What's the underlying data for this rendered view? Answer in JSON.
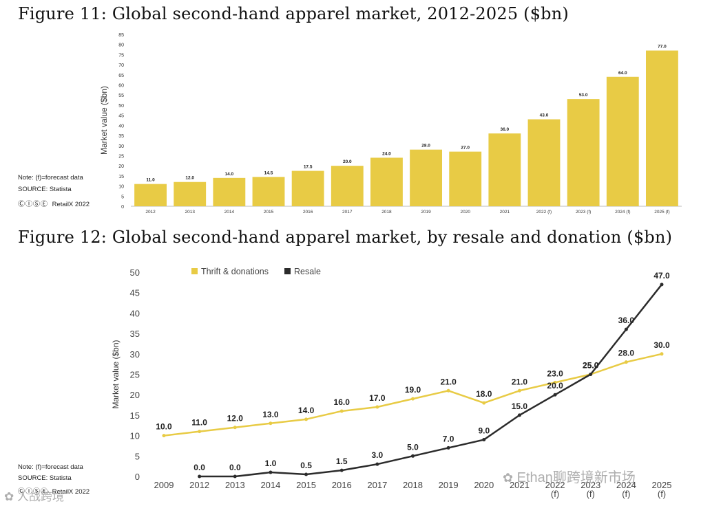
{
  "figure11": {
    "title": "Figure 11: Global second-hand apparel market, 2012-2025 ($bn)",
    "note": "Note: (f)=forecast data",
    "source": "SOURCE: Statista",
    "license": "RetailX 2022",
    "license_icons": "ⒸⒾⓈⒺ"
  },
  "figure12": {
    "title": "Figure 12: Global second-hand apparel market, by resale and donation ($bn)",
    "note": "Note: (f)=forecast data",
    "source": "SOURCE: Statista",
    "license": "RetailX 2022",
    "license_icons": "ⒸⒾⓈⒺ"
  },
  "watermark": {
    "right": "Ethan聊跨境新市场",
    "left": "人战跨境"
  },
  "colors": {
    "bar": "#E8CB45",
    "thrift": "#E8CB45",
    "resale": "#2B2B2B",
    "axis": "#BBBBBB"
  },
  "chart_data": [
    {
      "type": "bar",
      "title": "Figure 11: Global second-hand apparel market, 2012-2025 ($bn)",
      "xlabel": "",
      "ylabel": "Market value ($bn)",
      "ylim": [
        0,
        85
      ],
      "yticks": [
        0,
        5,
        10,
        15,
        20,
        25,
        30,
        35,
        40,
        45,
        50,
        55,
        60,
        65,
        70,
        75,
        80,
        85
      ],
      "categories": [
        "2012",
        "2013",
        "2014",
        "2015",
        "2016",
        "2017",
        "2018",
        "2019",
        "2020",
        "2021",
        "2022 (f)",
        "2023 (f)",
        "2024 (f)",
        "2025 (f)"
      ],
      "values": [
        11.0,
        12.0,
        14.0,
        14.5,
        17.5,
        20.0,
        24.0,
        28.0,
        27.0,
        36.0,
        43.0,
        53.0,
        64.0,
        77.0
      ],
      "labels": [
        "11.0",
        "12.0",
        "14.0",
        "14.5",
        "17.5",
        "20.0",
        "24.0",
        "28.0",
        "27.0",
        "36.0",
        "43.0",
        "53.0",
        "64.0",
        "77.0"
      ],
      "grid": false
    },
    {
      "type": "line",
      "title": "Figure 12: Global second-hand apparel market, by resale and donation ($bn)",
      "xlabel": "",
      "ylabel": "Market value ($bn)",
      "ylim": [
        0,
        50
      ],
      "yticks": [
        0,
        5,
        10,
        15,
        20,
        25,
        30,
        35,
        40,
        45,
        50
      ],
      "categories": [
        [
          "2009"
        ],
        [
          "2012"
        ],
        [
          "2013"
        ],
        [
          "2014"
        ],
        [
          "2015"
        ],
        [
          "2016"
        ],
        [
          "2017"
        ],
        [
          "2018"
        ],
        [
          "2019"
        ],
        [
          "2020"
        ],
        [
          "2021"
        ],
        [
          "2022",
          "(f)"
        ],
        [
          "2023",
          "(f)"
        ],
        [
          "2024",
          "(f)"
        ],
        [
          "2025",
          "(f)"
        ]
      ],
      "legend_position": "top-left",
      "grid": false,
      "series": [
        {
          "name": "Thrift & donations",
          "values": [
            10.0,
            11.0,
            12.0,
            13.0,
            14.0,
            16.0,
            17.0,
            19.0,
            21.0,
            18.0,
            21.0,
            23.0,
            25.0,
            28.0,
            30.0
          ],
          "labels": [
            "10.0",
            "11.0",
            "12.0",
            "13.0",
            "14.0",
            "16.0",
            "17.0",
            "19.0",
            "21.0",
            "18.0",
            "21.0",
            "23.0",
            "25.0",
            "28.0",
            "30.0"
          ]
        },
        {
          "name": "Resale",
          "values": [
            null,
            0.0,
            0.0,
            1.0,
            0.5,
            1.5,
            3.0,
            5.0,
            7.0,
            9.0,
            15.0,
            20.0,
            25.0,
            36.0,
            47.0
          ],
          "labels": [
            null,
            "0.0",
            "0.0",
            "1.0",
            "0.5",
            "1.5",
            "3.0",
            "5.0",
            "7.0",
            "9.0",
            "15.0",
            "20.0",
            "25.0",
            "36.0",
            "47.0"
          ]
        }
      ]
    }
  ]
}
